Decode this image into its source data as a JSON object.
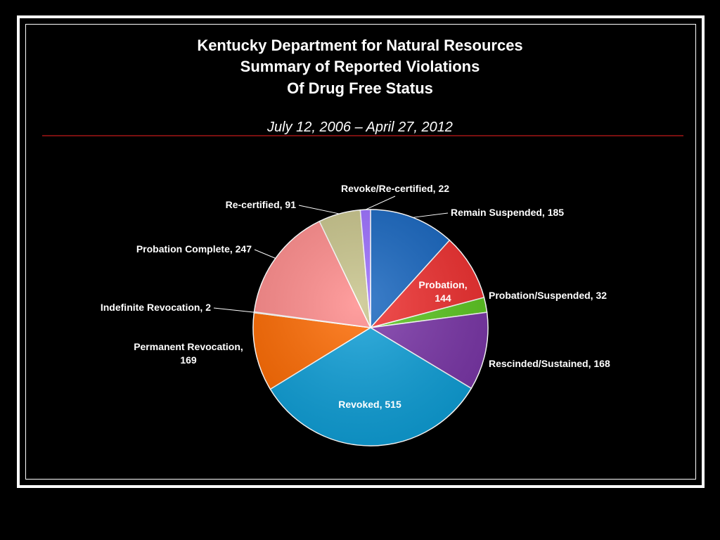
{
  "slide": {
    "title_lines": [
      "Kentucky Department for Natural Resources",
      "Summary of Reported Violations",
      "Of Drug Free Status"
    ],
    "date_range": "July 12, 2006 – April 27, 2012"
  },
  "chart_data": {
    "type": "pie",
    "title": "Kentucky Department for Natural Resources Summary of Reported Violations Of Drug Free Status",
    "subtitle": "July 12, 2006 – April 27, 2012",
    "slices": [
      {
        "category": "Remain Suspended",
        "value": 185,
        "color": "#1565c0",
        "label": "Remain Suspended, 185"
      },
      {
        "category": "Probation",
        "value": 144,
        "color": "#f02e2e",
        "label_lines": [
          "Probation,",
          "144"
        ]
      },
      {
        "category": "Probation/Suspended",
        "value": 32,
        "color": "#5cc820",
        "label": "Probation/Suspended, 32"
      },
      {
        "category": "Rescinded/Sustained",
        "value": 168,
        "color": "#7a35a8",
        "label": "Rescinded/Sustained, 168"
      },
      {
        "category": "Revoked",
        "value": 515,
        "color": "#0d9fd8",
        "label": "Revoked, 515"
      },
      {
        "category": "Permanent Revocation",
        "value": 169,
        "color": "#ff6a00",
        "label_lines": [
          "Permanent Revocation,",
          "169"
        ]
      },
      {
        "category": "Indefinite Revocation",
        "value": 2,
        "color": "#ff9a9a",
        "label": "Indefinite Revocation, 2"
      },
      {
        "category": "Probation Complete",
        "value": 247,
        "color": "#ff8a8a",
        "label": "Probation Complete, 247"
      },
      {
        "category": "Re-certified",
        "value": 91,
        "color": "#c8c48a",
        "label": "Re-certified, 91"
      },
      {
        "category": "Revoke/Re-certified",
        "value": 22,
        "color": "#9a6cff",
        "label": "Revoke/Re-certified, 22"
      }
    ]
  }
}
